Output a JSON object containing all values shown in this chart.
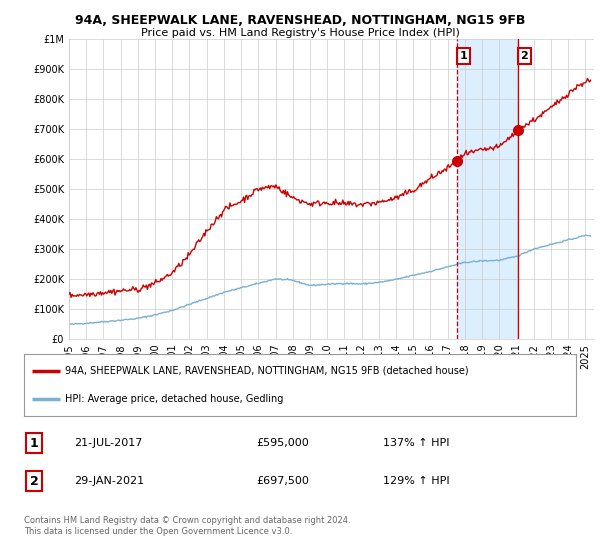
{
  "title1": "94A, SHEEPWALK LANE, RAVENSHEAD, NOTTINGHAM, NG15 9FB",
  "title2": "Price paid vs. HM Land Registry's House Price Index (HPI)",
  "legend_line1": "94A, SHEEPWALK LANE, RAVENSHEAD, NOTTINGHAM, NG15 9FB (detached house)",
  "legend_line2": "HPI: Average price, detached house, Gedling",
  "annotation1_date": "21-JUL-2017",
  "annotation1_price": "£595,000",
  "annotation1_hpi": "137% ↑ HPI",
  "annotation2_date": "29-JAN-2021",
  "annotation2_price": "£697,500",
  "annotation2_hpi": "129% ↑ HPI",
  "footnote": "Contains HM Land Registry data © Crown copyright and database right 2024.\nThis data is licensed under the Open Government Licence v3.0.",
  "sale1_year": 2017.54,
  "sale1_price": 595000,
  "sale2_year": 2021.08,
  "sale2_price": 697500,
  "line_color_red": "#cc0000",
  "line_color_blue": "#7ab0d4",
  "shade_color": "#ddeeff",
  "vline1_color": "#cc0000",
  "vline2_color": "#cc0000",
  "dot_color_red": "#cc0000",
  "ylim_min": 0,
  "ylim_max": 1000000,
  "xlim_min": 1995,
  "xlim_max": 2025.5,
  "background_color": "#ffffff",
  "grid_color": "#cccccc"
}
